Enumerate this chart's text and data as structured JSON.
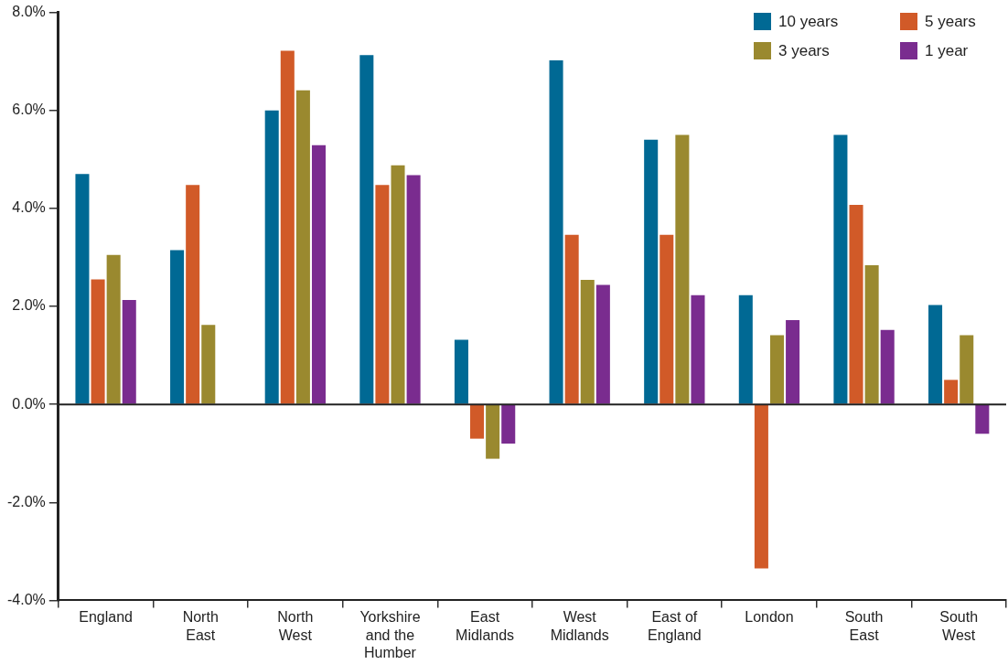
{
  "chart_data": {
    "type": "bar",
    "categories": [
      "England",
      "North East",
      "North West",
      "Yorkshire and the Humber",
      "East Midlands",
      "West Midlands",
      "East of England",
      "London",
      "South East",
      "South West"
    ],
    "series": [
      {
        "name": "10 years",
        "color": "#006994",
        "values": [
          4.7,
          3.15,
          6.0,
          7.13,
          1.32,
          7.02,
          5.4,
          2.23,
          5.5,
          2.03
        ]
      },
      {
        "name": "5 years",
        "color": "#d15a28",
        "values": [
          2.55,
          4.48,
          7.22,
          4.48,
          -0.7,
          3.46,
          3.46,
          -3.35,
          4.07,
          0.5
        ]
      },
      {
        "name": "3 years",
        "color": "#9a892f",
        "values": [
          3.05,
          1.62,
          6.41,
          4.88,
          -1.11,
          2.54,
          5.5,
          1.41,
          2.84,
          1.41
        ]
      },
      {
        "name": "1 year",
        "color": "#7a2c8f",
        "values": [
          2.13,
          null,
          5.29,
          4.68,
          -0.8,
          2.44,
          2.23,
          1.72,
          1.52,
          -0.6
        ]
      }
    ],
    "ylim": [
      -4,
      8
    ],
    "yticks": [
      {
        "value": -4,
        "label": "-4.0%"
      },
      {
        "value": -2,
        "label": "-2.0%"
      },
      {
        "value": 0,
        "label": "0.0%"
      },
      {
        "value": 2,
        "label": "2.0%"
      },
      {
        "value": 4,
        "label": "4.0%"
      },
      {
        "value": 6,
        "label": "6.0%"
      },
      {
        "value": 8,
        "label": "8.0%"
      }
    ],
    "ref_lines": [
      {
        "axis": "y",
        "value": 0,
        "color": "#222222"
      }
    ],
    "legend": "top right"
  }
}
